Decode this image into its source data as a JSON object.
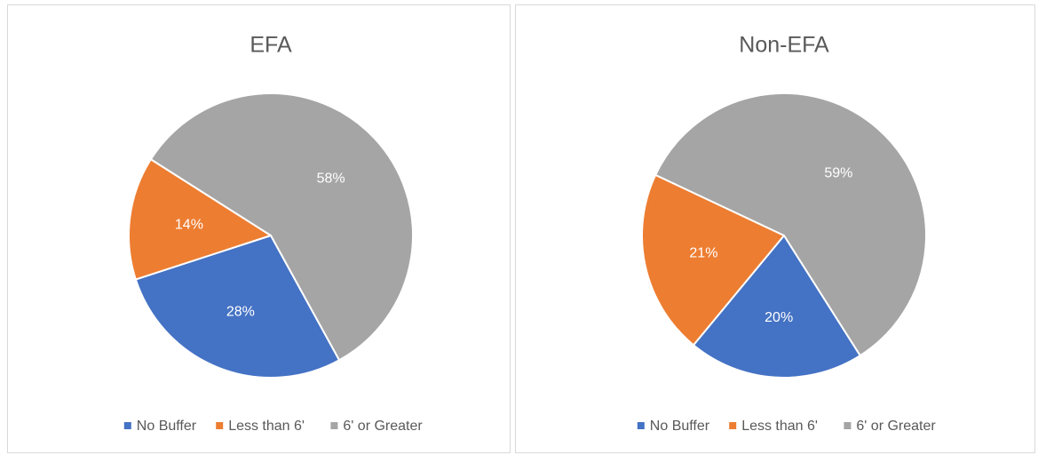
{
  "chart_data": [
    {
      "type": "pie",
      "title": "EFA",
      "categories": [
        "No Buffer",
        "Less than 6'",
        "6' or Greater"
      ],
      "values": [
        28,
        14,
        58
      ],
      "value_labels": [
        "28%",
        "14%",
        "58%"
      ],
      "colors": [
        "#4472c4",
        "#ed7d31",
        "#a5a5a5"
      ],
      "legend": "bottom"
    },
    {
      "type": "pie",
      "title": "Non-EFA",
      "categories": [
        "No Buffer",
        "Less than 6'",
        "6' or Greater"
      ],
      "values": [
        20,
        21,
        59
      ],
      "value_labels": [
        "20%",
        "21%",
        "59%"
      ],
      "colors": [
        "#4472c4",
        "#ed7d31",
        "#a5a5a5"
      ],
      "legend": "bottom"
    }
  ]
}
